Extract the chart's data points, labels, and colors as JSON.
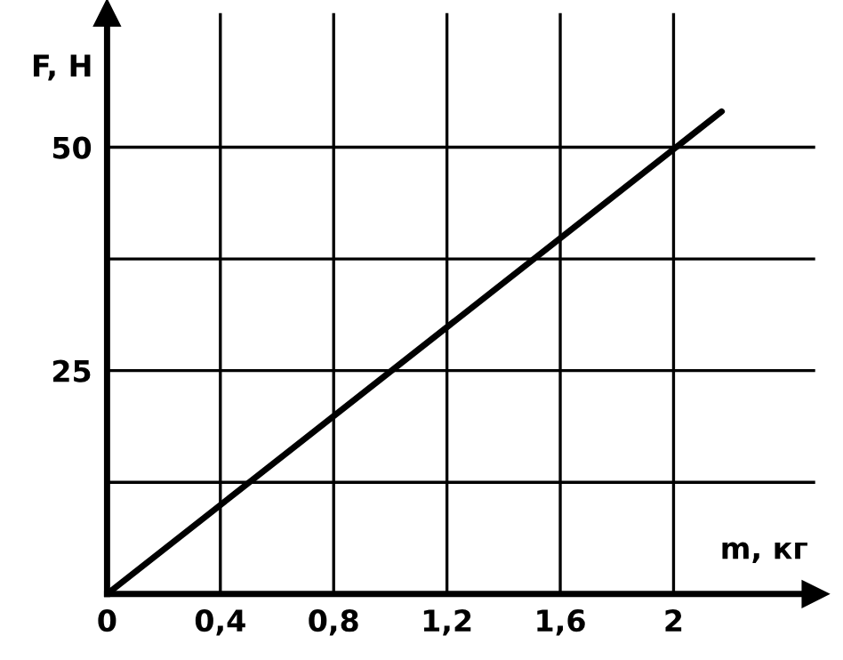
{
  "chart_data": {
    "type": "line",
    "xlabel": "m, кг",
    "ylabel": "F, Н",
    "x": [
      0,
      2.17
    ],
    "series": [
      {
        "color": "#000000",
        "values": [
          0,
          54
        ]
      }
    ],
    "xlim": [
      0,
      2.5
    ],
    "ylim": [
      0,
      65
    ],
    "xticks": [
      {
        "value": 0,
        "label": "0"
      },
      {
        "value": 0.4,
        "label": "0,4"
      },
      {
        "value": 0.8,
        "label": "0,8"
      },
      {
        "value": 1.2,
        "label": "1,2"
      },
      {
        "value": 1.6,
        "label": "1,6"
      },
      {
        "value": 2,
        "label": "2"
      }
    ],
    "yticks": [
      {
        "value": 12.5,
        "label": null
      },
      25,
      {
        "value": 37.5,
        "label": null
      },
      50
    ],
    "grid": true,
    "marker": "none",
    "line_style": "solid"
  }
}
